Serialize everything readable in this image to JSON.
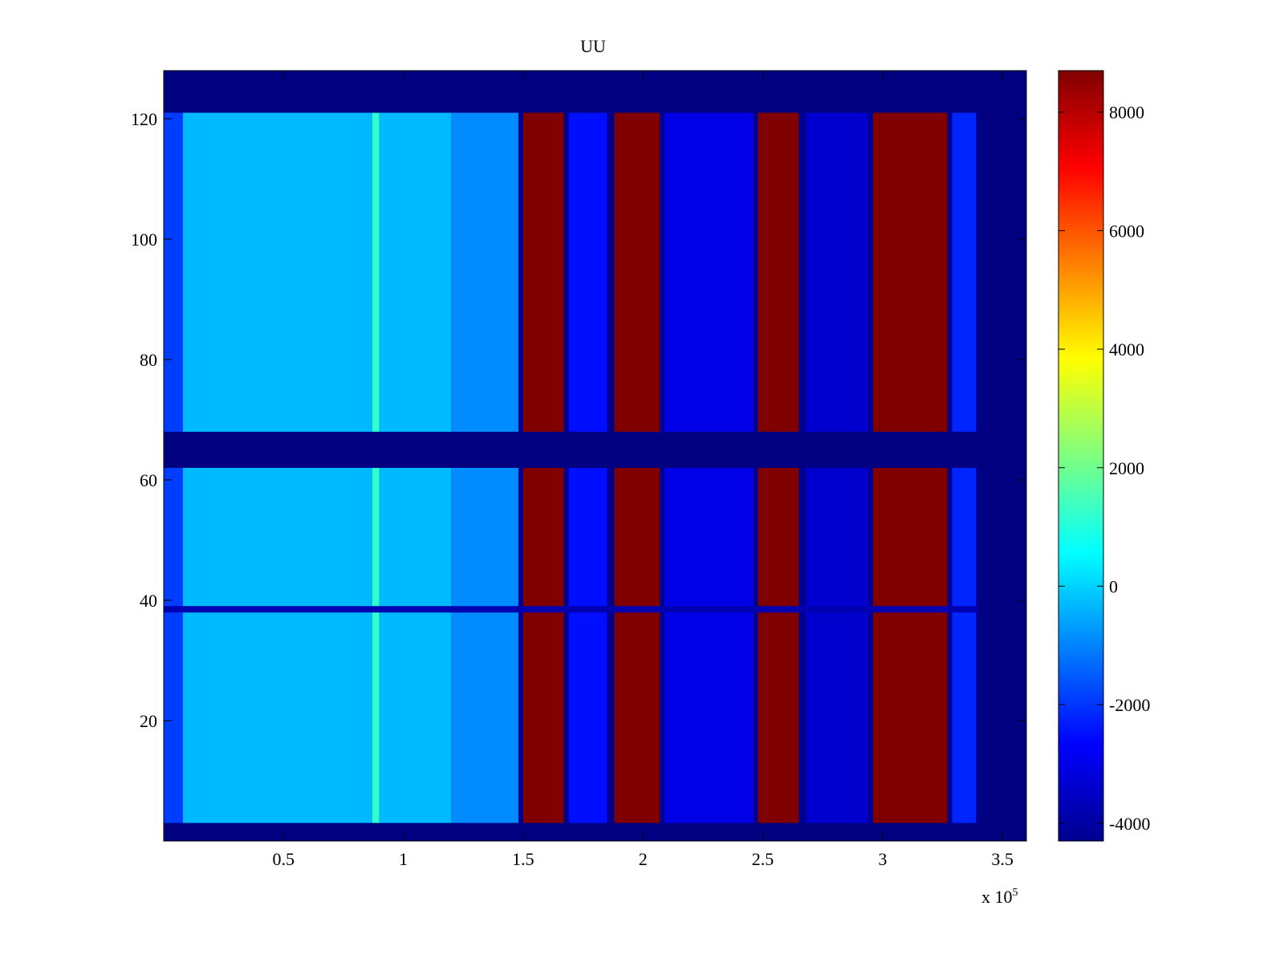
{
  "chart_data": {
    "type": "heatmap",
    "title": "UU",
    "xlabel": "",
    "ylabel": "",
    "x_multiplier_label": "x 10",
    "x_multiplier_exponent": "5",
    "xlim": [
      0,
      3.6
    ],
    "ylim": [
      0,
      128
    ],
    "xticks": [
      0.5,
      1,
      1.5,
      2,
      2.5,
      3,
      3.5
    ],
    "xtick_labels": [
      "0.5",
      "1",
      "1.5",
      "2",
      "2.5",
      "3",
      "3.5"
    ],
    "yticks": [
      20,
      40,
      60,
      80,
      100,
      120
    ],
    "ytick_labels": [
      "20",
      "40",
      "60",
      "80",
      "100",
      "120"
    ],
    "colormap": "jet",
    "clim": [
      -4300,
      8700
    ],
    "colorbar_ticks": [
      -4000,
      -2000,
      0,
      2000,
      4000,
      6000,
      8000
    ],
    "colorbar_tick_labels": [
      "-4000",
      "-2000",
      "0",
      "2000",
      "4000",
      "6000",
      "8000"
    ],
    "data_x_extent": [
      0,
      3.4
    ],
    "masked_rows": [
      [
        0,
        3
      ],
      [
        62,
        68
      ],
      [
        121,
        128
      ]
    ],
    "special_row": 38.5,
    "background_value": -4300,
    "regions": [
      {
        "x": [
          0.0,
          0.08
        ],
        "value": -1900
      },
      {
        "x": [
          0.08,
          0.87
        ],
        "value": -300
      },
      {
        "x": [
          0.87,
          0.9
        ],
        "value": 1200
      },
      {
        "x": [
          0.9,
          1.2
        ],
        "value": -300
      },
      {
        "x": [
          1.2,
          1.48
        ],
        "value": -900
      },
      {
        "x": [
          1.5,
          1.67
        ],
        "value": 8700
      },
      {
        "x": [
          1.69,
          1.85
        ],
        "value": -2500
      },
      {
        "x": [
          1.88,
          2.07
        ],
        "value": 8700
      },
      {
        "x": [
          2.09,
          2.46
        ],
        "value": -3000
      },
      {
        "x": [
          2.48,
          2.65
        ],
        "value": 8700
      },
      {
        "x": [
          2.68,
          2.94
        ],
        "value": -3300
      },
      {
        "x": [
          2.96,
          3.27
        ],
        "value": 8700
      },
      {
        "x": [
          3.29,
          3.39
        ],
        "value": -2200
      }
    ],
    "colors": {
      "background": "#00008F",
      "high": "#800000"
    }
  }
}
